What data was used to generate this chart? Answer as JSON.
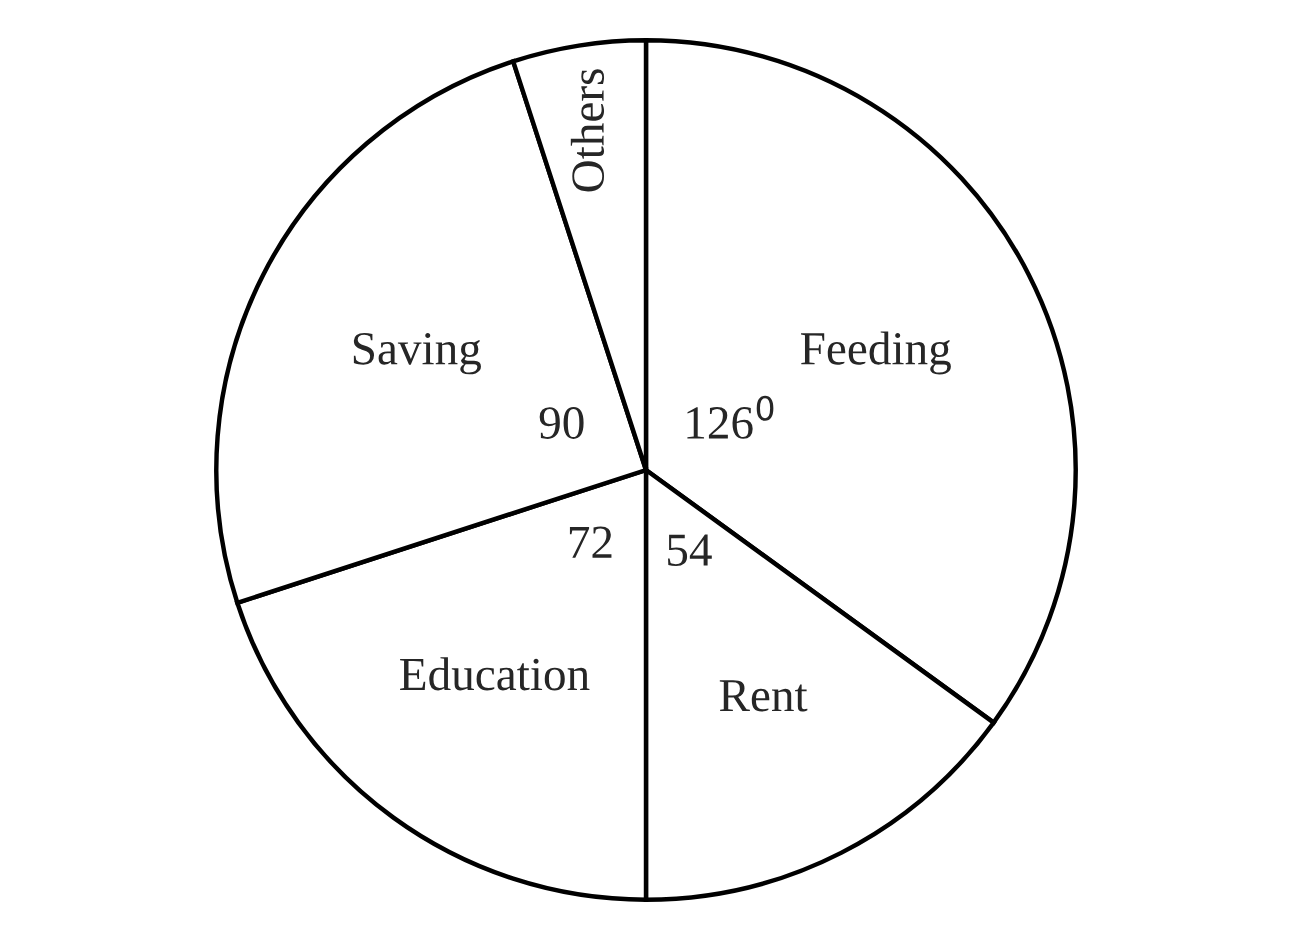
{
  "chart_data": {
    "type": "pie",
    "categories": [
      "Feeding",
      "Rent",
      "Education",
      "Saving",
      "Others"
    ],
    "values": [
      126,
      54,
      72,
      90,
      18
    ],
    "value_labels": [
      "126$^{0}$",
      "54",
      "72",
      "90",
      null
    ],
    "colors": [
      "#ffffff",
      "#ffffff",
      "#ffffff",
      "#ffffff",
      "#ffffff"
    ]
  }
}
